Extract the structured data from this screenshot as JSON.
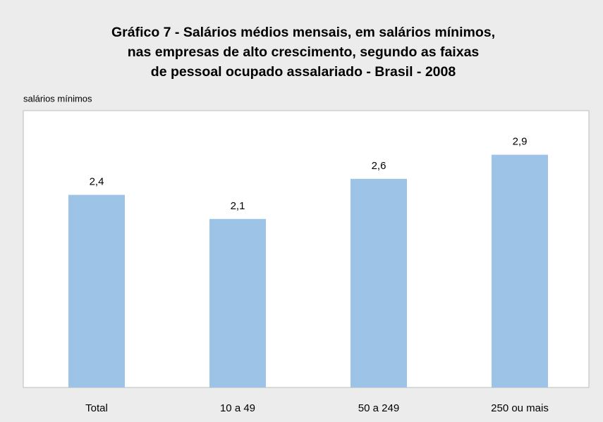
{
  "chart_data": {
    "type": "bar",
    "title": [
      "Gráfico 7 - Salários médios mensais, em salários mínimos,",
      "nas empresas de alto crescimento, segundo as faixas",
      "de pessoal ocupado assalariado - Brasil - 2008"
    ],
    "y_label": "salários mínimos",
    "categories": [
      "Total",
      "10 a 49",
      "50 a 249",
      "250 ou mais"
    ],
    "values": [
      2.4,
      2.1,
      2.6,
      2.9
    ],
    "value_labels": [
      "2,4",
      "2,1",
      "2,6",
      "2,9"
    ],
    "color": "#9dc3e6",
    "ylim": [
      0,
      3.45
    ]
  }
}
